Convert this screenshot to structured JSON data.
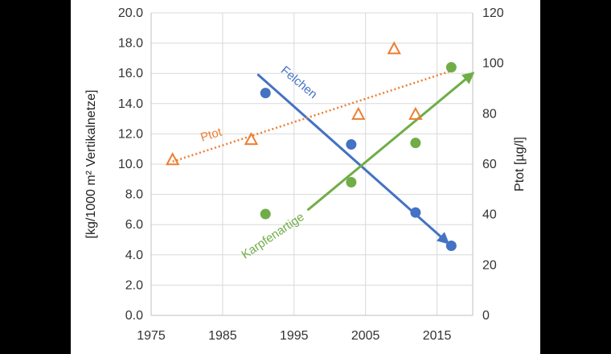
{
  "chart_data": {
    "type": "scatter",
    "title": "",
    "xlabel": "",
    "ylabel": "[kg/1000 m² Vertikalnetze]",
    "y2label": "Ptot [µg/l]",
    "xlim": [
      1975,
      2020
    ],
    "ylim": [
      0,
      20
    ],
    "y2lim": [
      0,
      120
    ],
    "x_ticks": [
      "1975",
      "1985",
      "1995",
      "2005",
      "2015"
    ],
    "y_ticks": [
      "0.0",
      "2.0",
      "4.0",
      "6.0",
      "8.0",
      "10.0",
      "12.0",
      "14.0",
      "16.0",
      "18.0",
      "20.0"
    ],
    "y2_ticks": [
      "0",
      "20",
      "40",
      "60",
      "80",
      "100",
      "120"
    ],
    "grid": true,
    "series": [
      {
        "name": "Felchen",
        "axis": "left",
        "marker": "circle",
        "color": "#4472C4",
        "x": [
          1991,
          2003,
          2012,
          2017
        ],
        "y": [
          14.7,
          11.3,
          6.8,
          4.6
        ],
        "trend": {
          "from": [
            1990,
            15.9
          ],
          "to": [
            2016.5,
            4.8
          ],
          "style": "solid-arrow"
        }
      },
      {
        "name": "Karpfenartige",
        "axis": "left",
        "marker": "circle",
        "color": "#70AD47",
        "x": [
          1991,
          2003,
          2012,
          2017
        ],
        "y": [
          6.7,
          8.8,
          11.4,
          16.4
        ],
        "trend": {
          "from": [
            1997,
            7.0
          ],
          "to": [
            2020,
            16.0
          ],
          "style": "solid-arrow"
        }
      },
      {
        "name": "Ptot",
        "axis": "right",
        "marker": "triangle",
        "color": "#ED7D31",
        "x": [
          1978,
          1989,
          2004,
          2009,
          2012
        ],
        "y": [
          62,
          70,
          80,
          106,
          80
        ],
        "trend": {
          "from": [
            1978,
            61
          ],
          "to": [
            2017,
            97
          ],
          "style": "dotted"
        }
      }
    ],
    "annotations": [
      {
        "text": "Felchen",
        "color": "#4472C4"
      },
      {
        "text": "Ptot",
        "color": "#ED7D31"
      },
      {
        "text": "Karpfenartige",
        "color": "#70AD47"
      }
    ]
  }
}
